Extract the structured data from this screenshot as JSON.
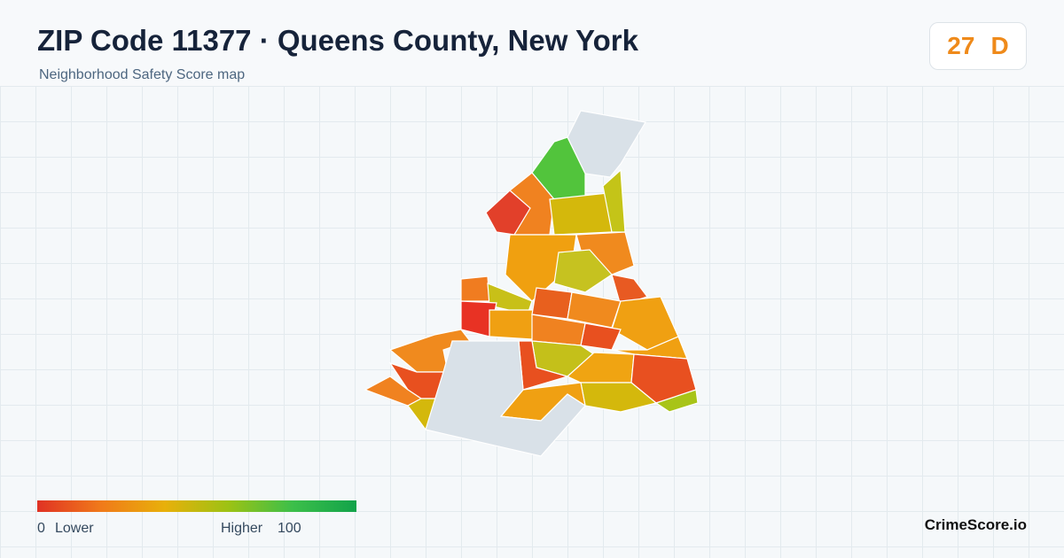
{
  "header": {
    "title": "ZIP Code 11377 · Queens County, New York",
    "subtitle": "Neighborhood Safety Score map"
  },
  "score": {
    "value": 27,
    "grade": "D"
  },
  "legend": {
    "min": 0,
    "min_label": "Lower",
    "max_label": "Higher",
    "max": 100
  },
  "brand": "CrimeScore.io"
}
